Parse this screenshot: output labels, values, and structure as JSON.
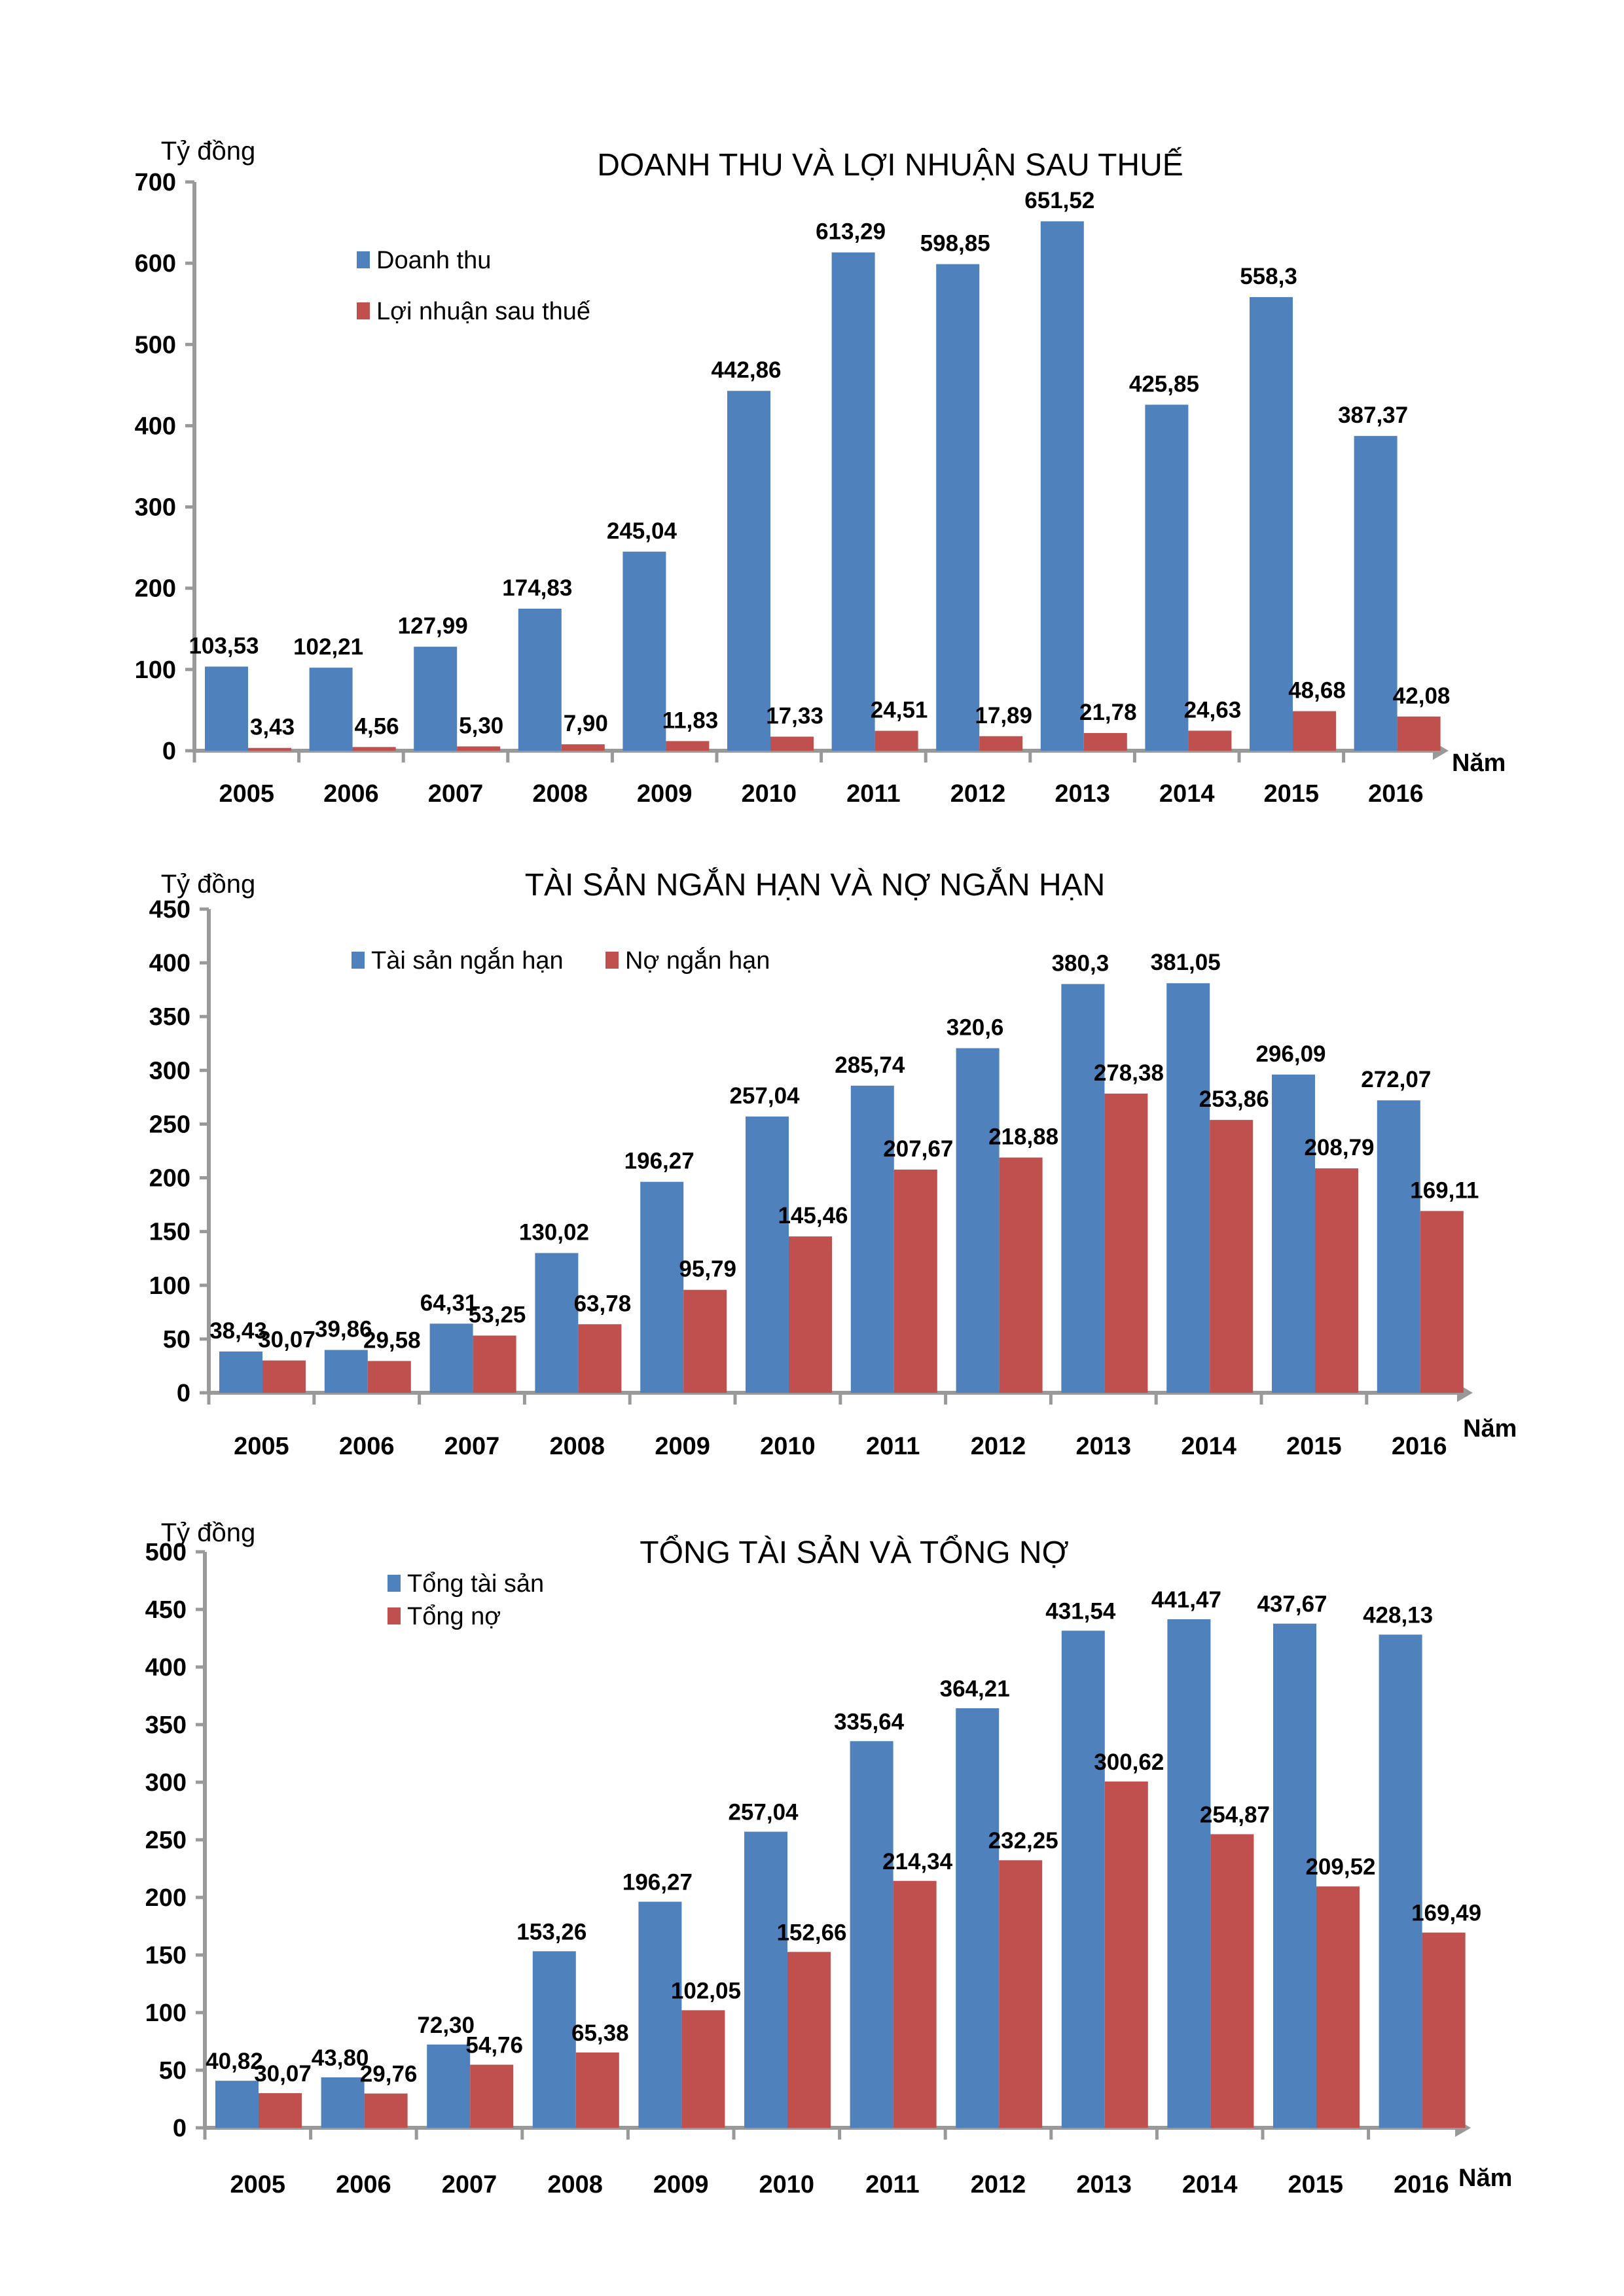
{
  "colors": {
    "series1": "#4F81BD",
    "series2": "#C0504D",
    "axis": "#999999"
  },
  "chart_data": [
    {
      "type": "bar",
      "title": "DOANH THU VÀ LỢI NHUẬN SAU THUẾ",
      "ylabel": "Tỷ đồng",
      "xlabel": "Năm",
      "ylim": [
        0,
        700
      ],
      "yticks": [
        0,
        100,
        200,
        300,
        400,
        500,
        600,
        700
      ],
      "grid": false,
      "legend_position": "top-left",
      "legend_layout": "vertical",
      "categories": [
        "2005",
        "2006",
        "2007",
        "2008",
        "2009",
        "2010",
        "2011",
        "2012",
        "2013",
        "2014",
        "2015",
        "2016"
      ],
      "series": [
        {
          "name": "Doanh thu",
          "values": [
            103.53,
            102.21,
            127.99,
            174.83,
            245.04,
            442.86,
            613.29,
            598.85,
            651.52,
            425.85,
            558.3,
            387.37
          ],
          "labels": [
            "103,53",
            "102,21",
            "127,99",
            "174,83",
            "245,04",
            "442,86",
            "613,29",
            "598,85",
            "651,52",
            "425,85",
            "558,3",
            "387,37"
          ]
        },
        {
          "name": "Lợi nhuận sau thuế",
          "values": [
            3.43,
            4.56,
            5.3,
            7.9,
            11.83,
            17.33,
            24.51,
            17.89,
            21.78,
            24.63,
            48.68,
            42.08
          ],
          "labels": [
            "3,43",
            "4,56",
            "5,30",
            "7,90",
            "11,83",
            "17,33",
            "24,51",
            "17,89",
            "21,78",
            "24,63",
            "48,68",
            "42,08"
          ]
        }
      ]
    },
    {
      "type": "bar",
      "title": "TÀI SẢN NGẮN HẠN VÀ NỢ NGẮN HẠN",
      "ylabel": "Tỷ đồng",
      "xlabel": "Năm",
      "ylim": [
        0,
        450
      ],
      "yticks": [
        0,
        50,
        100,
        150,
        200,
        250,
        300,
        350,
        400,
        450
      ],
      "grid": false,
      "legend_position": "top-left",
      "legend_layout": "horizontal",
      "categories": [
        "2005",
        "2006",
        "2007",
        "2008",
        "2009",
        "2010",
        "2011",
        "2012",
        "2013",
        "2014",
        "2015",
        "2016"
      ],
      "series": [
        {
          "name": "Tài sản ngắn hạn",
          "values": [
            38.43,
            39.86,
            64.31,
            130.02,
            196.27,
            257.04,
            285.74,
            320.6,
            380.3,
            381.05,
            296.09,
            272.07
          ],
          "labels": [
            "38,43",
            "39,86",
            "64,31",
            "130,02",
            "196,27",
            "257,04",
            "285,74",
            "320,6",
            "380,3",
            "381,05",
            "296,09",
            "272,07"
          ]
        },
        {
          "name": "Nợ ngắn hạn",
          "values": [
            30.07,
            29.58,
            53.25,
            63.78,
            95.79,
            145.46,
            207.67,
            218.88,
            278.38,
            253.86,
            208.79,
            169.11
          ],
          "labels": [
            "30,07",
            "29,58",
            "53,25",
            "63,78",
            "95,79",
            "145,46",
            "207,67",
            "218,88",
            "278,38",
            "253,86",
            "208,79",
            "169,11"
          ]
        }
      ]
    },
    {
      "type": "bar",
      "title": "TỔNG TÀI SẢN VÀ TỔNG NỢ",
      "ylabel": "Tỷ đồng",
      "xlabel": "Năm",
      "ylim": [
        0,
        500
      ],
      "yticks": [
        0,
        50,
        100,
        150,
        200,
        250,
        300,
        350,
        400,
        450,
        500
      ],
      "grid": false,
      "legend_position": "top-left",
      "legend_layout": "vertical",
      "categories": [
        "2005",
        "2006",
        "2007",
        "2008",
        "2009",
        "2010",
        "2011",
        "2012",
        "2013",
        "2014",
        "2015",
        "2016"
      ],
      "series": [
        {
          "name": "Tổng tài sản",
          "values": [
            40.82,
            43.8,
            72.3,
            153.26,
            196.27,
            257.04,
            335.64,
            364.21,
            431.54,
            441.47,
            437.67,
            428.13
          ],
          "labels": [
            "40,82",
            "43,80",
            "72,30",
            "153,26",
            "196,27",
            "257,04",
            "335,64",
            "364,21",
            "431,54",
            "441,47",
            "437,67",
            "428,13"
          ]
        },
        {
          "name": "Tổng nợ",
          "values": [
            30.07,
            29.76,
            54.76,
            65.38,
            102.05,
            152.66,
            214.34,
            232.25,
            300.62,
            254.87,
            209.52,
            169.49
          ],
          "labels": [
            "30,07",
            "29,76",
            "54,76",
            "65,38",
            "102,05",
            "152,66",
            "214,34",
            "232,25",
            "300,62",
            "254,87",
            "209,52",
            "169,49"
          ]
        }
      ]
    }
  ]
}
